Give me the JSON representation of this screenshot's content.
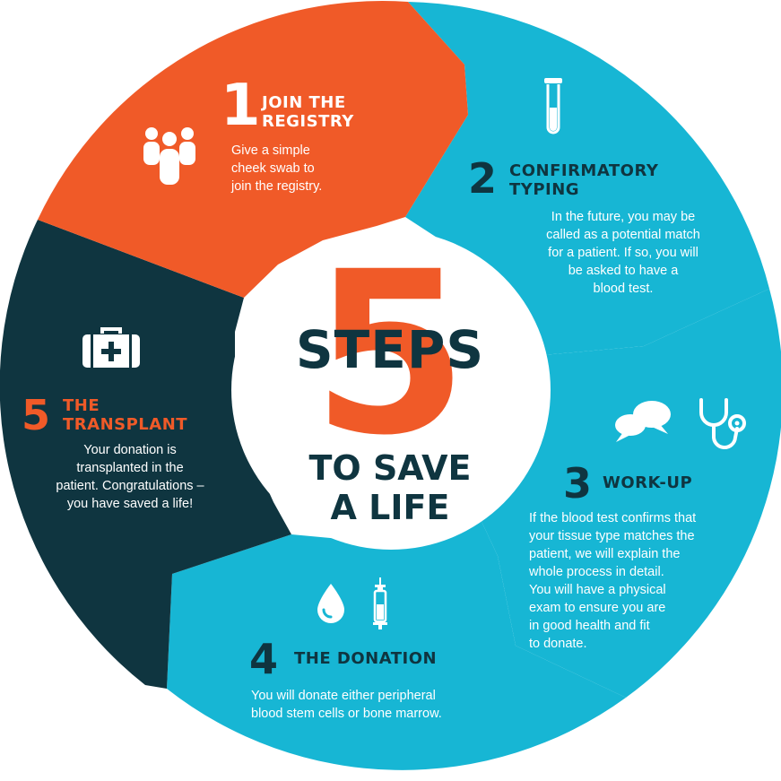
{
  "colors": {
    "orange": "#f05a28",
    "teal": "#17b6d4",
    "navy": "#0f3540",
    "white": "#ffffff"
  },
  "center": {
    "big_number": "5",
    "steps_word": "STEPS",
    "tagline": "TO SAVE\nA LIFE"
  },
  "steps": [
    {
      "number": "1",
      "title": "JOIN THE\nREGISTRY",
      "text": "Give a simple\ncheek swab to\njoin the registry.",
      "icon": "people-group-icon"
    },
    {
      "number": "2",
      "title": "CONFIRMATORY\nTYPING",
      "text": "In the future, you may be\ncalled as a potential match\nfor a patient. If so, you will\nbe asked to have a\nblood test.",
      "icon": "test-tube-icon"
    },
    {
      "number": "3",
      "title": "WORK-UP",
      "text": "If the blood test confirms that\nyour tissue type matches the\npatient, we will explain the\nwhole process in detail.\nYou will have a physical\nexam to ensure you are\nin good health and fit\nto donate.",
      "icons": [
        "speech-bubbles-icon",
        "stethoscope-icon"
      ]
    },
    {
      "number": "4",
      "title": "THE DONATION",
      "text": "You will donate either peripheral\nblood stem cells or bone marrow.",
      "icons": [
        "blood-drop-icon",
        "syringe-icon"
      ]
    },
    {
      "number": "5",
      "title": "THE\nTRANSPLANT",
      "text": "Your donation is\ntransplanted in the\npatient. Congratulations –\nyou have saved a life!",
      "icon": "medical-kit-icon"
    }
  ]
}
